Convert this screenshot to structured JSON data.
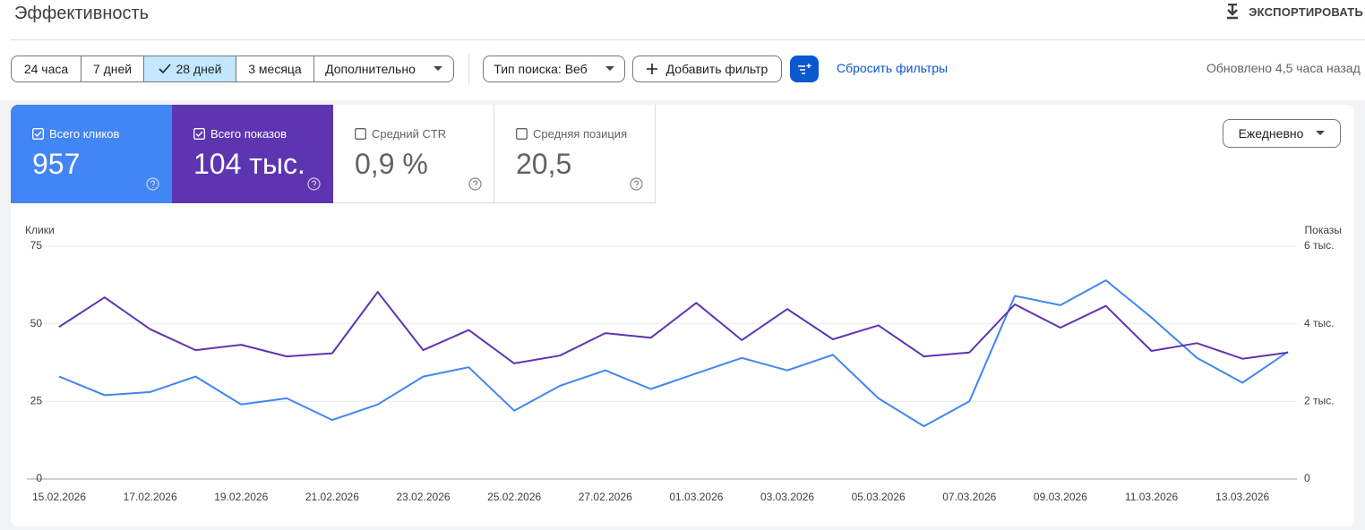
{
  "header": {
    "title": "Эффективность",
    "export": "ЭКСПОРТИРОВАТЬ"
  },
  "toolbar": {
    "ranges": [
      "24 часа",
      "7 дней",
      "28 дней",
      "3 месяца",
      "Дополнительно"
    ],
    "search_type": "Тип поиска: Веб",
    "add_filter": "Добавить фильтр",
    "reset": "Сбросить фильтры",
    "updated": "Обновлено 4,5 часа назад"
  },
  "metrics": [
    {
      "label": "Всего кликов",
      "value": "957"
    },
    {
      "label": "Всего показов",
      "value": "104 тыс."
    },
    {
      "label": "Средний CTR",
      "value": "0,9 %"
    },
    {
      "label": "Средняя позиция",
      "value": "20,5"
    }
  ],
  "granularity": "Ежедневно",
  "chart_data": {
    "type": "line",
    "y_label": "Клики",
    "y2_label": "Показы",
    "categories": [
      "15.02.2026",
      null,
      "17.02.2026",
      null,
      "19.02.2026",
      null,
      "21.02.2026",
      null,
      "23.02.2026",
      null,
      "25.02.2026",
      null,
      "27.02.2026",
      null,
      "01.03.2026",
      null,
      "03.03.2026",
      null,
      "05.03.2026",
      null,
      "07.03.2026",
      null,
      "09.03.2026",
      null,
      "11.03.2026",
      null,
      "13.03.2026",
      null
    ],
    "series": [
      {
        "color": "#4285f4",
        "values": [
          33,
          27,
          28,
          33,
          24,
          26,
          19,
          24,
          33,
          36,
          22,
          30,
          35,
          29,
          34,
          39,
          35,
          40,
          26,
          17,
          25,
          59,
          56,
          64,
          52,
          39,
          31,
          41
        ]
      },
      {
        "color": "#5e35b1",
        "axis": "y2",
        "values": [
          3920,
          4680,
          3860,
          3320,
          3460,
          3160,
          3240,
          4820,
          3320,
          3840,
          2980,
          3180,
          3760,
          3640,
          4540,
          3580,
          4380,
          3600,
          3960,
          3160,
          3260,
          4500,
          3900,
          4460,
          3300,
          3500,
          3100,
          3260
        ]
      }
    ],
    "ylim": [
      0,
      75
    ],
    "yticks": [
      0,
      25,
      50,
      75
    ],
    "y2lim": [
      0,
      6000
    ],
    "y2ticks": [
      0,
      {
        "value": 2000,
        "label": "2 тыс."
      },
      {
        "value": 4000,
        "label": "4 тыс."
      },
      {
        "value": 6000,
        "label": "6 тыс."
      }
    ],
    "grid": true
  }
}
